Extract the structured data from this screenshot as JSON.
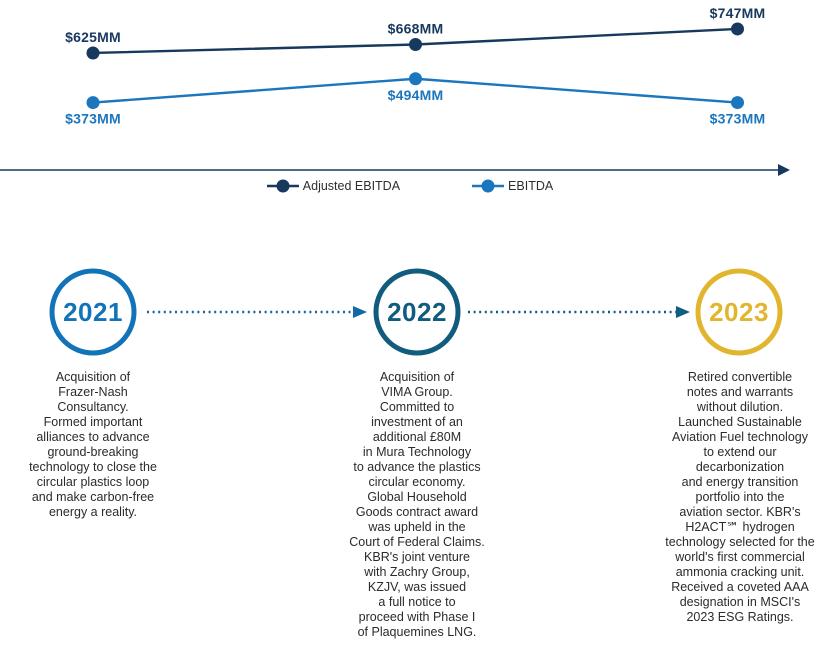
{
  "chart_data": {
    "type": "line",
    "title": "",
    "categories": [
      "2021",
      "2022",
      "2023"
    ],
    "series": [
      {
        "name": "Adjusted EBITDA",
        "color": "#17395e",
        "values": [
          625,
          668,
          747
        ],
        "labels": [
          "$625MM",
          "$668MM",
          "$747MM"
        ],
        "label_position": "above"
      },
      {
        "name": "EBITDA",
        "color": "#1b76bd",
        "values": [
          373,
          494,
          373
        ],
        "labels": [
          "$373MM",
          "$494MM",
          "$373MM"
        ],
        "label_position": "below"
      }
    ],
    "xlabel": "",
    "ylabel": "",
    "unit": "$MM",
    "axis_color": "#17395e",
    "grid": "off",
    "legend_position": "bottom-center"
  },
  "timeline": {
    "arrow_colors": [
      "#1368a8",
      "#0f5e80"
    ],
    "items": [
      {
        "year": "2021",
        "color": "#1373b8",
        "description": "Acquisition of\nFrazer-Nash\nConsultancy.\nFormed important\nalliances to advance\nground-breaking\ntechnology to close the\ncircular plastics loop\nand make carbon-free\nenergy a reality."
      },
      {
        "year": "2022",
        "color": "#115c7e",
        "description": "Acquisition of\nVIMA Group.\nCommitted to\ninvestment of an\nadditional £80M\nin Mura Technology\nto advance the plastics\ncircular economy.\nGlobal Household\nGoods contract award\nwas upheld in the\nCourt of Federal Claims.\nKBR's joint venture\nwith Zachry Group,\nKZJV, was issued\na full notice to\nproceed with Phase I\nof Plaquemines LNG."
      },
      {
        "year": "2023",
        "color": "#e2b52f",
        "description": "Retired convertible\nnotes and warrants\nwithout dilution.\nLaunched Sustainable\nAviation Fuel technology\nto extend our\ndecarbonization\nand energy transition\nportfolio into the\naviation sector. KBR's\nH2ACT℠ hydrogen\ntechnology selected for the\nworld's first commercial\nammonia cracking unit.\nReceived a coveted AAA\ndesignation in MSCI's\n2023 ESG Ratings."
      }
    ]
  }
}
